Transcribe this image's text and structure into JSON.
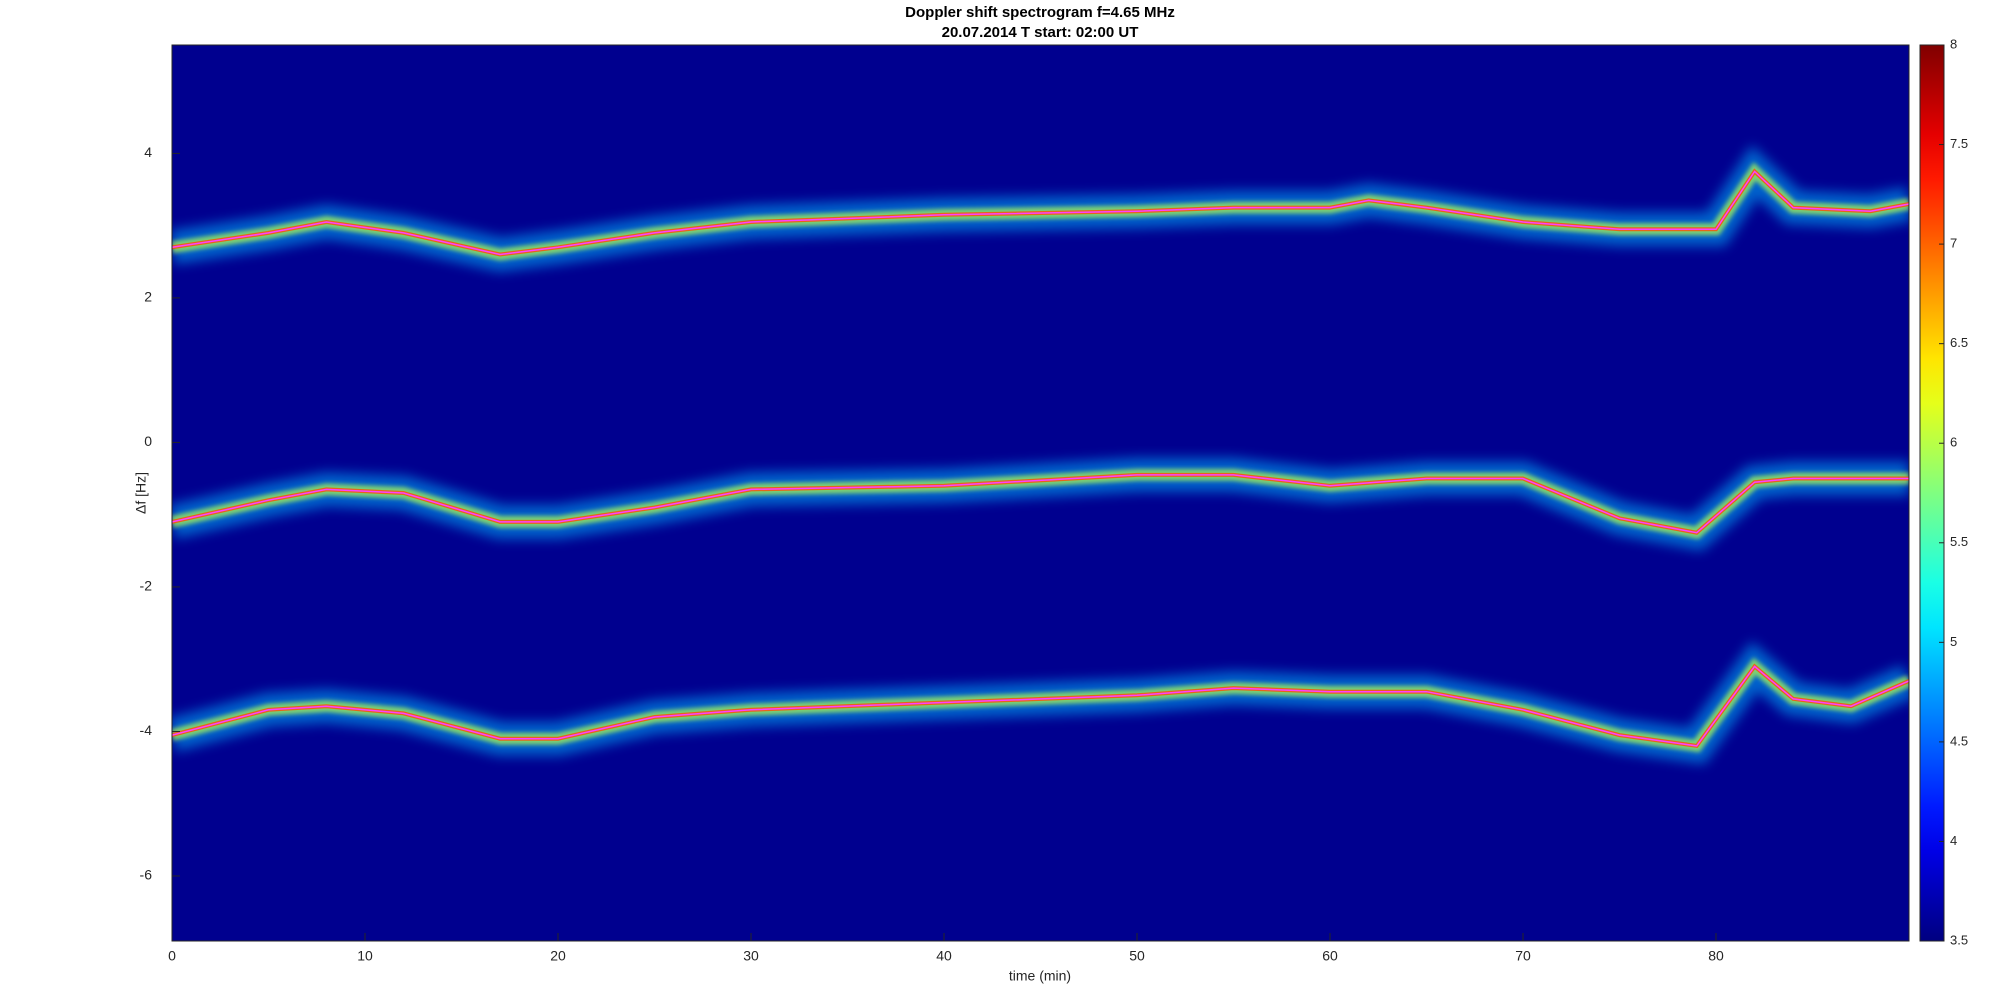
{
  "chart_data": {
    "type": "spectrogram",
    "title": "Doppler shift spectrogram f=4.65 MHz",
    "subtitle": "20.07.2014   T start: 02:00 UT",
    "x_label": "time (min)",
    "y_label": "Δf [Hz]",
    "xlim": [
      0,
      90
    ],
    "xticks": [
      0,
      10,
      20,
      30,
      40,
      50,
      60,
      70,
      80
    ],
    "ylim": [
      -6.9,
      5.5
    ],
    "yticks": [
      -6,
      -4,
      -2,
      0,
      2,
      4
    ],
    "background": "#00008f",
    "colormap": "jet",
    "clim": [
      3.5,
      8
    ],
    "cticks": [
      3.5,
      4,
      4.5,
      5,
      5.5,
      6,
      6.5,
      7,
      7.5,
      8
    ],
    "series": [
      {
        "color": "#ff40ff",
        "x": [
          0,
          5,
          8,
          12,
          17,
          20,
          25,
          30,
          40,
          50,
          55,
          60,
          62,
          65,
          70,
          75,
          80,
          82,
          84,
          88,
          90
        ],
        "values": [
          2.7,
          2.9,
          3.05,
          2.9,
          2.6,
          2.7,
          2.9,
          3.05,
          3.15,
          3.2,
          3.25,
          3.25,
          3.35,
          3.25,
          3.05,
          2.95,
          2.95,
          3.75,
          3.25,
          3.2,
          3.3
        ]
      },
      {
        "color": "#ff40ff",
        "x": [
          0,
          5,
          8,
          12,
          17,
          20,
          25,
          30,
          40,
          50,
          55,
          60,
          65,
          70,
          75,
          79,
          82,
          84,
          90
        ],
        "values": [
          -1.1,
          -0.8,
          -0.65,
          -0.7,
          -1.1,
          -1.1,
          -0.9,
          -0.65,
          -0.6,
          -0.45,
          -0.45,
          -0.6,
          -0.5,
          -0.5,
          -1.05,
          -1.25,
          -0.55,
          -0.5,
          -0.5
        ]
      },
      {
        "color": "#ff40ff",
        "x": [
          0,
          5,
          8,
          12,
          17,
          20,
          25,
          30,
          40,
          50,
          55,
          60,
          65,
          70,
          75,
          79,
          82,
          84,
          87,
          90
        ],
        "values": [
          -4.05,
          -3.7,
          -3.65,
          -3.75,
          -4.1,
          -4.1,
          -3.8,
          -3.7,
          -3.6,
          -3.5,
          -3.4,
          -3.45,
          -3.45,
          -3.7,
          -4.05,
          -4.2,
          -3.1,
          -3.55,
          -3.65,
          -3.3
        ]
      }
    ]
  }
}
